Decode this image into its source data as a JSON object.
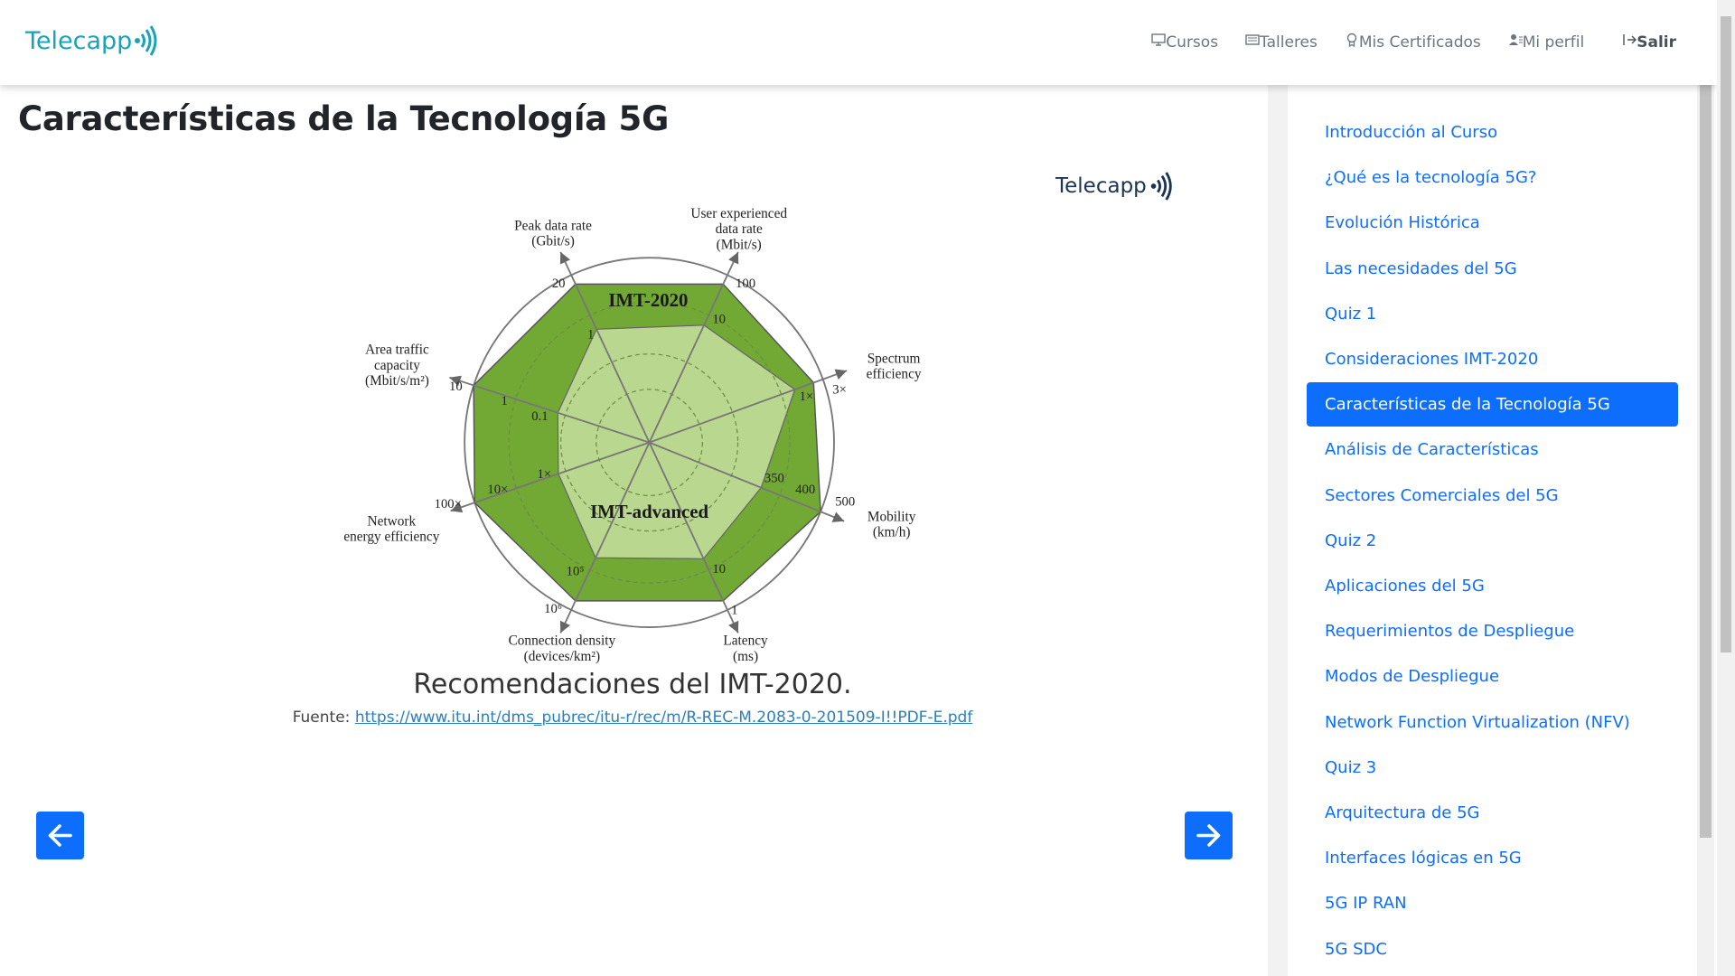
{
  "header": {
    "logo": "Telecapp",
    "nav": [
      "Cursos",
      "Talleres",
      "Mis Certificados",
      "Mi perfil"
    ],
    "logout": "Salir"
  },
  "page_title": "Características de la Tecnología 5G",
  "diagram": {
    "logo": "Telecapp",
    "series_labels": [
      "IMT-2020",
      "IMT-advanced"
    ],
    "axes": [
      {
        "lines": [
          "Peak data rate",
          "(Gbit/s)"
        ],
        "ticks": [
          "20",
          "1"
        ]
      },
      {
        "lines": [
          "User experienced",
          "data rate",
          "(Mbit/s)"
        ],
        "ticks": [
          "100",
          "10"
        ]
      },
      {
        "lines": [
          "Spectrum",
          "efficiency"
        ],
        "ticks": [
          "3×",
          "1×"
        ]
      },
      {
        "lines": [
          "Mobility",
          "(km/h)"
        ],
        "ticks": [
          "500",
          "400",
          "350"
        ]
      },
      {
        "lines": [
          "Latency",
          "(ms)"
        ],
        "ticks": [
          "1",
          "10"
        ]
      },
      {
        "lines": [
          "Connection density",
          "(devices/km²)"
        ],
        "ticks": [
          "10⁶",
          "10⁵"
        ]
      },
      {
        "lines": [
          "Network",
          "energy efficiency"
        ],
        "ticks": [
          "100×",
          "10×",
          "1×"
        ]
      },
      {
        "lines": [
          "Area traffic",
          "capacity",
          "(Mbit/s/m²)"
        ],
        "ticks": [
          "10",
          "1",
          "0.1"
        ]
      }
    ]
  },
  "caption": "Recomendaciones del IMT-2020.",
  "source": {
    "label": "Fuente:",
    "link": "https://www.itu.int/dms_pubrec/itu-r/rec/m/R-REC-M.2083-0-201509-I!!PDF-E.pdf"
  },
  "sidebar": {
    "active": 6,
    "items": [
      "Introducción al Curso",
      "¿Qué es la tecnología 5G?",
      "Evolución Histórica",
      "Las necesidades del 5G",
      "Quiz 1",
      "Consideraciones IMT-2020",
      "Características de la Tecnología 5G",
      "Análisis de Características",
      "Sectores Comerciales del 5G",
      "Quiz 2",
      "Aplicaciones del 5G",
      "Requerimientos de Despliegue",
      "Modos de Despliegue",
      "Network Function Virtualization (NFV)",
      "Quiz 3",
      "Arquitectura de 5G",
      "Interfaces lógicas en 5G",
      "5G IP RAN",
      "5G SDC"
    ]
  }
}
